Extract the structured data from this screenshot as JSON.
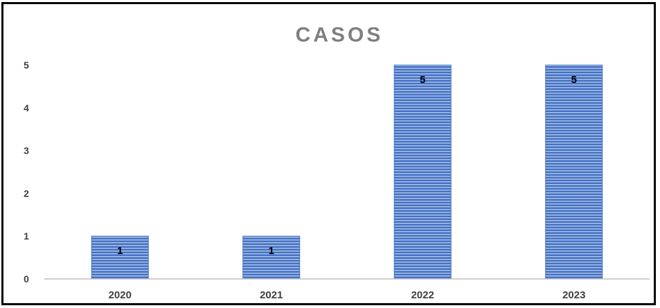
{
  "chart_data": {
    "type": "bar",
    "title": "CASOS",
    "categories": [
      "2020",
      "2021",
      "2022",
      "2023"
    ],
    "values": [
      1,
      1,
      5,
      5
    ],
    "data_labels": [
      "1",
      "1",
      "5",
      "5"
    ],
    "ylim": [
      0,
      5
    ],
    "yticks": [
      "0",
      "1",
      "2",
      "3",
      "4",
      "5"
    ],
    "xlabel": "",
    "ylabel": "",
    "grid": false,
    "legend": "none",
    "colors": {
      "bar_fill": "#4472C4",
      "bar_stripe": "#ffffff",
      "title": "#7F7F7F",
      "axis": "#BFBFBF",
      "frame": "#000000"
    }
  }
}
